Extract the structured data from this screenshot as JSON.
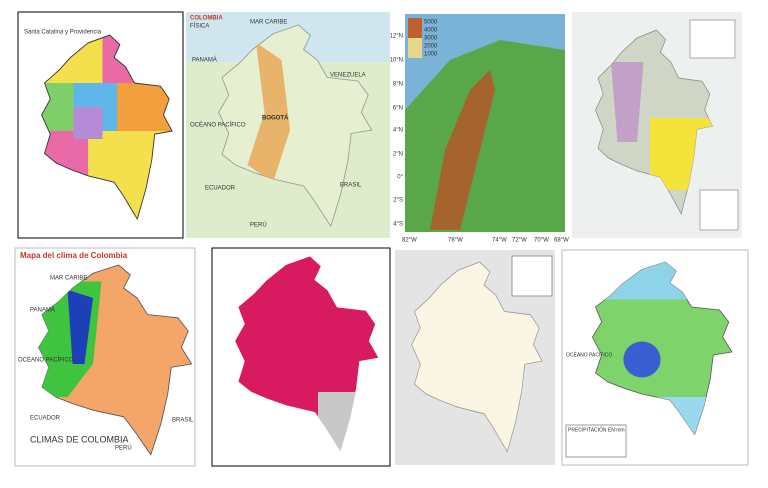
{
  "tiles": [
    {
      "labels": [
        "Santa Catalina y Providencia"
      ]
    },
    {
      "labels": [
        "COLOMBIA",
        "FÍSICA",
        "MAR CARIBE",
        "PANAMÁ",
        "VENEZUELA",
        "OCÉANO PACÍFICO",
        "BOGOTÁ",
        "ECUADOR",
        "PERÚ",
        "BRASIL"
      ]
    },
    {
      "labels": [
        "12°N",
        "10°N",
        "8°N",
        "6°N",
        "4°N",
        "2°N",
        "0°",
        "2°S",
        "4°S",
        "82°W",
        "78°W",
        "74°W",
        "72°W",
        "70°W",
        "68°W",
        "5000",
        "4000",
        "3000",
        "2000",
        "1000"
      ]
    },
    {
      "labels": []
    },
    {
      "labels": [
        "Mapa del clima de Colombia",
        "MAR CARIBE",
        "PANAMÁ",
        "OCÉANO PACÍFICO",
        "ECUADOR",
        "CLIMAS DE COLOMBIA",
        "BRASIL",
        "PERÚ"
      ]
    },
    {
      "labels": []
    },
    {
      "labels": []
    },
    {
      "labels": [
        "PRECIPITACIÓN EN mm",
        "OCÉANO PACÍFICO"
      ]
    }
  ]
}
